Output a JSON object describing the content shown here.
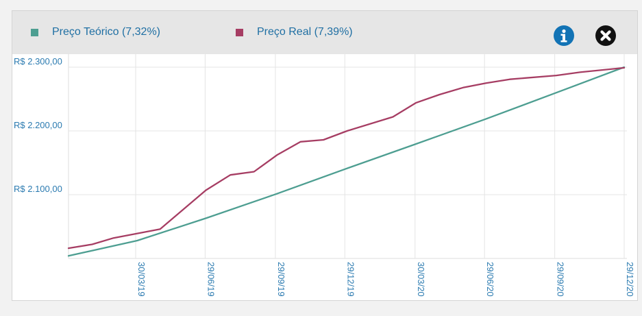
{
  "legend": [
    {
      "label": "Preço Teórico (7,32%)",
      "color": "#4d9e91"
    },
    {
      "label": "Preço Real (7,39%)",
      "color": "#a63d63"
    }
  ],
  "icons": {
    "info": "info-icon",
    "close": "close-icon"
  },
  "chart_data": {
    "type": "line",
    "xlabel": "",
    "ylabel": "",
    "x_tick_labels": [
      "30/03/19",
      "29/06/19",
      "29/09/19",
      "29/12/19",
      "30/03/20",
      "29/06/20",
      "29/09/20",
      "29/12/20"
    ],
    "x_ticks": [
      "2019-03-30",
      "2019-06-29",
      "2019-09-29",
      "2019-12-29",
      "2020-03-30",
      "2020-06-29",
      "2020-09-29",
      "2020-12-29"
    ],
    "xlim": [
      "2019-01-01",
      "2020-12-29"
    ],
    "y_tick_labels": [
      "R$ 2.100,00",
      "R$ 2.200,00",
      "R$ 2.300,00"
    ],
    "y_ticks": [
      2100,
      2200,
      2300
    ],
    "ylim": [
      2000,
      2300
    ],
    "grid": true,
    "legend_position": "top",
    "series": [
      {
        "name": "Preço Teórico (7,32%)",
        "color": "#4d9e91",
        "points": [
          [
            "2019-01-01",
            2004
          ],
          [
            "2019-04-01",
            2028
          ],
          [
            "2019-06-30",
            2063
          ],
          [
            "2019-09-30",
            2101
          ],
          [
            "2019-12-29",
            2140
          ],
          [
            "2020-03-30",
            2179
          ],
          [
            "2020-06-29",
            2218
          ],
          [
            "2020-09-29",
            2259
          ],
          [
            "2020-12-29",
            2300
          ]
        ]
      },
      {
        "name": "Preço Real (7,39%)",
        "color": "#a63d63",
        "points": [
          [
            "2019-01-01",
            2016
          ],
          [
            "2019-02-01",
            2022
          ],
          [
            "2019-03-01",
            2032
          ],
          [
            "2019-05-01",
            2046
          ],
          [
            "2019-06-30",
            2107
          ],
          [
            "2019-08-01",
            2131
          ],
          [
            "2019-09-01",
            2136
          ],
          [
            "2019-10-01",
            2162
          ],
          [
            "2019-11-01",
            2183
          ],
          [
            "2019-12-01",
            2186
          ],
          [
            "2020-01-01",
            2200
          ],
          [
            "2020-03-01",
            2222
          ],
          [
            "2020-03-31",
            2244
          ],
          [
            "2020-05-01",
            2257
          ],
          [
            "2020-06-01",
            2268
          ],
          [
            "2020-07-01",
            2275
          ],
          [
            "2020-08-01",
            2281
          ],
          [
            "2020-10-01",
            2287
          ],
          [
            "2020-11-01",
            2292
          ],
          [
            "2020-12-29",
            2299
          ]
        ]
      }
    ]
  }
}
